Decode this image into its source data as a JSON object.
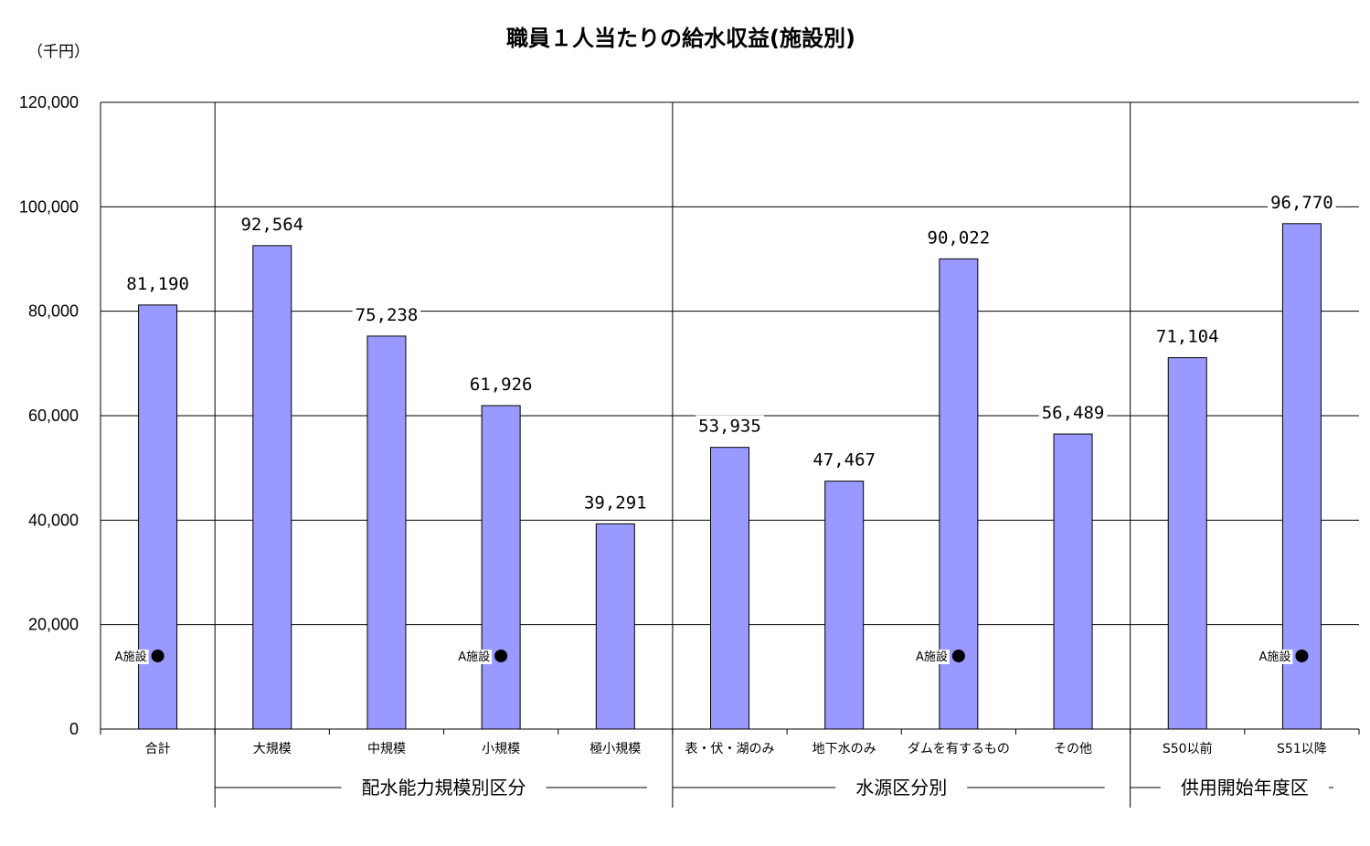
{
  "chart_data": {
    "type": "bar",
    "title": "職員１人当たりの給水収益(施設別)",
    "unit_label": "（千円）",
    "ylim": [
      0,
      120000
    ],
    "yticks": [
      "0",
      "20,000",
      "40,000",
      "60,000",
      "80,000",
      "100,000",
      "120,000"
    ],
    "ytick_values": [
      0,
      20000,
      40000,
      60000,
      80000,
      100000,
      120000
    ],
    "grid": true,
    "bar_color": "#9999ff",
    "categories": [
      "合計",
      "大規模",
      "中規模",
      "小規模",
      "極小規模",
      "表・伏・湖のみ",
      "地下水のみ",
      "ダムを有するもの",
      "その他",
      "S50以前",
      "S51以降"
    ],
    "values": [
      81190,
      92564,
      75238,
      61926,
      39291,
      53935,
      47467,
      90022,
      56489,
      71104,
      96770
    ],
    "value_labels": [
      "81,190",
      "92,564",
      "75,238",
      "61,926",
      "39,291",
      "53,935",
      "47,467",
      "90,022",
      "56,489",
      "71,104",
      "96,770"
    ],
    "groups": [
      {
        "label": "配水能力規模別区分",
        "start": 1,
        "end": 4
      },
      {
        "label": "水源区分別",
        "start": 5,
        "end": 8
      },
      {
        "label": "供用開始年度区",
        "start": 9,
        "end": 10
      }
    ],
    "marker": {
      "label": "A施設",
      "value": 14000,
      "category_indices": [
        0,
        3,
        7,
        10
      ]
    }
  }
}
